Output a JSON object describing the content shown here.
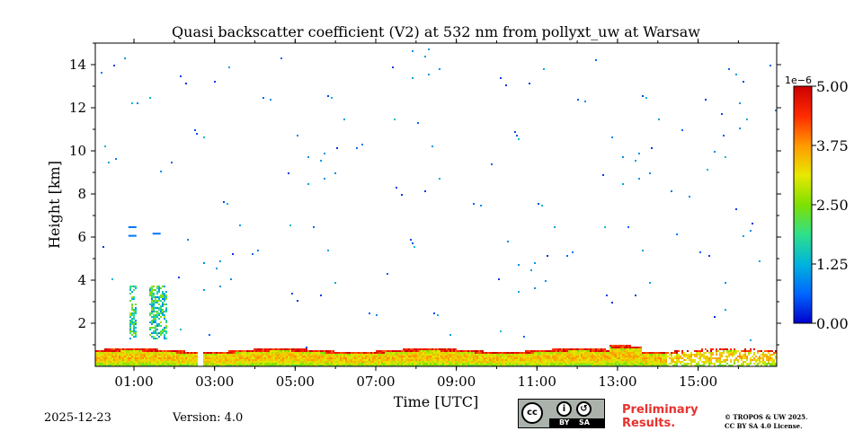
{
  "chart_data": {
    "type": "heatmap",
    "title": "Quasi backscatter coefficient (V2) at 532 nm from pollyxt_uw at Warsaw",
    "xlabel": "Time [UTC]",
    "ylabel": "Height [km]",
    "x_ticks": [
      "01:00",
      "03:00",
      "05:00",
      "07:00",
      "09:00",
      "11:00",
      "13:00",
      "15:00"
    ],
    "x_tick_hours": [
      1,
      3,
      5,
      7,
      9,
      11,
      13,
      15
    ],
    "x_range_hours": [
      0.04,
      16.95
    ],
    "y_ticks": [
      "2",
      "4",
      "6",
      "8",
      "10",
      "12",
      "14"
    ],
    "y_range_km": [
      0,
      15
    ],
    "colorbar": {
      "exponent_label": "1e−6",
      "ticks": [
        "0.00",
        "1.25",
        "2.50",
        "3.75",
        "5.00"
      ],
      "range": [
        0,
        5
      ],
      "colormap": [
        "#0000cc",
        "#0066ff",
        "#00b4dc",
        "#2fe08a",
        "#7ee000",
        "#e8e800",
        "#ff9a00",
        "#ff2a00",
        "#cc0000"
      ]
    },
    "features": {
      "boundary_layer_top_km": 0.8,
      "data_gap_hours": [
        2.55,
        2.68
      ],
      "lofted_layer_hours": [
        0.85,
        1.85
      ],
      "lofted_layer_top_km": 6.5
    }
  },
  "footer": {
    "date": "2025-12-23",
    "version": "Version: 4.0",
    "license_badge": {
      "cc": "cc",
      "by": "BY",
      "sa": "SA"
    },
    "preliminary_line1": "Preliminary",
    "preliminary_line2": "Results.",
    "copyright_line1": "© TROPOS & UW 2025.",
    "copyright_line2": "CC BY SA 4.0 License."
  }
}
